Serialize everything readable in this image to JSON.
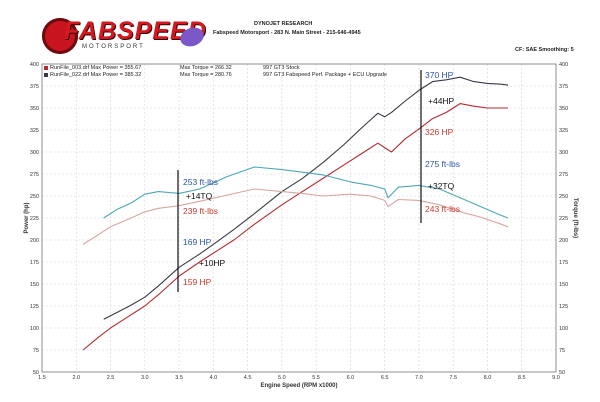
{
  "logo": {
    "brand": "FABSPEED",
    "sub": "MOTORSPORT"
  },
  "header": {
    "title": "DYNOJET RESEARCH",
    "address": "Fabspeed Motorsport - 283 N. Main Street - 215-646-4945",
    "settings": "CF: SAE  Smoothing: 5",
    "run1": "RunFile_003.drf Max Power = 355.67",
    "run1_torque": "Max Torque = 266.32",
    "run1_desc": "997 GT3 Stock",
    "run2": "RunFile_022.drf Max Power = 385.32",
    "run2_torque": "Max Torque = 280.76",
    "run2_desc": "997 GT3 Fabspeed Perf. Package + ECU Upgrade"
  },
  "colors": {
    "stock_power": "#b22a2e",
    "mod_power": "#3a3a46",
    "stock_torque": "#d6a6a4",
    "mod_torque": "#4fa7b1",
    "blue_text": "#2a55a4",
    "red_text": "#c63a2e"
  },
  "chart_data": {
    "type": "line",
    "xlabel": "Engine Speed (RPM x1000)",
    "ylabel_left": "Power (hp)",
    "ylabel_right": "Torque (ft-lbs)",
    "xlim": [
      1.5,
      9.0
    ],
    "ylim": [
      50,
      400
    ],
    "x_ticks": [
      "1.5",
      "2.0",
      "2.5",
      "3.0",
      "3.5",
      "4.0",
      "4.5",
      "5.0",
      "5.5",
      "6.0",
      "6.5",
      "7.0",
      "7.5",
      "8.0",
      "8.5",
      "9.0"
    ],
    "y_ticks": [
      "50",
      "75",
      "100",
      "125",
      "150",
      "175",
      "200",
      "225",
      "250",
      "275",
      "300",
      "325",
      "350",
      "375",
      "400"
    ],
    "series": [
      {
        "name": "RunFile_022.drf Max Power = 385.32",
        "x": [
          2.4,
          2.6,
          2.8,
          3.0,
          3.2,
          3.5,
          3.8,
          4.0,
          4.3,
          4.6,
          5.0,
          5.3,
          5.6,
          5.9,
          6.2,
          6.4,
          6.5,
          6.6,
          6.8,
          7.0,
          7.2,
          7.4,
          7.6,
          7.8,
          8.0,
          8.2,
          8.3
        ],
        "values": [
          110,
          118,
          126,
          135,
          148,
          169,
          184,
          195,
          212,
          230,
          255,
          270,
          288,
          308,
          330,
          344,
          340,
          345,
          358,
          370,
          380,
          382,
          385,
          380,
          378,
          377,
          376
        ]
      },
      {
        "name": "RunFile_003.drf Max Power = 355.67",
        "x": [
          2.1,
          2.3,
          2.5,
          2.7,
          3.0,
          3.2,
          3.5,
          3.8,
          4.0,
          4.3,
          4.6,
          5.0,
          5.3,
          5.6,
          5.9,
          6.2,
          6.4,
          6.5,
          6.6,
          6.8,
          7.0,
          7.2,
          7.4,
          7.6,
          7.8,
          8.0,
          8.2,
          8.3
        ],
        "values": [
          75,
          88,
          100,
          110,
          125,
          138,
          159,
          175,
          185,
          200,
          218,
          240,
          255,
          270,
          285,
          300,
          310,
          305,
          300,
          315,
          326,
          338,
          345,
          355,
          352,
          350,
          350,
          350
        ]
      },
      {
        "name": "Max Torque = 280.76",
        "x": [
          2.4,
          2.6,
          2.8,
          3.0,
          3.2,
          3.5,
          3.8,
          4.2,
          4.6,
          5.0,
          5.3,
          5.6,
          6.0,
          6.3,
          6.5,
          6.55,
          6.7,
          7.0,
          7.3,
          7.6,
          7.9,
          8.2,
          8.3
        ],
        "values": [
          225,
          235,
          242,
          252,
          255,
          253,
          258,
          272,
          283,
          280,
          277,
          274,
          266,
          262,
          258,
          248,
          260,
          262,
          258,
          248,
          238,
          228,
          225
        ]
      },
      {
        "name": "Max Torque = 266.32",
        "x": [
          2.1,
          2.3,
          2.5,
          2.8,
          3.0,
          3.2,
          3.5,
          3.8,
          4.2,
          4.6,
          5.0,
          5.3,
          5.6,
          6.0,
          6.3,
          6.5,
          6.55,
          6.7,
          7.0,
          7.3,
          7.6,
          7.9,
          8.2,
          8.3
        ],
        "values": [
          195,
          205,
          215,
          225,
          232,
          236,
          239,
          244,
          251,
          258,
          255,
          253,
          250,
          252,
          250,
          245,
          238,
          246,
          245,
          240,
          232,
          226,
          218,
          215
        ]
      }
    ],
    "annotations": {
      "low_torque_mod": "253 ft-lbs",
      "low_torque_gain": "+14TQ",
      "low_torque_stock": "239 ft-lbs",
      "low_power_mod": "169 HP",
      "low_power_gain": "+10HP",
      "low_power_stock": "159 HP",
      "high_power_mod": "370 HP",
      "high_power_gain": "+44HP",
      "high_power_stock": "326 HP",
      "high_torque_mod": "275 ft-lbs",
      "high_torque_gain": "+32TQ",
      "high_torque_stock": "243 ft-lbs"
    }
  }
}
